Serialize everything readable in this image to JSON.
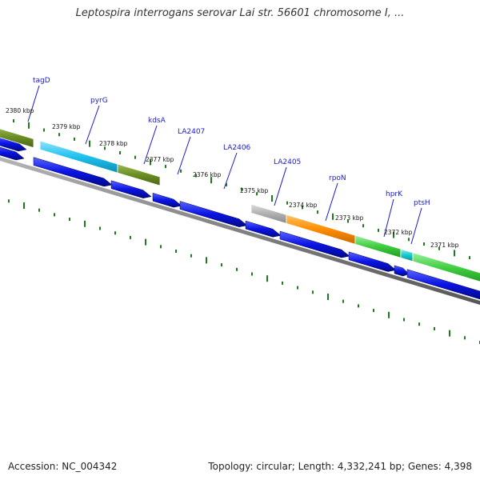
{
  "title": "Leptospira interrogans serovar Lai str. 56601 chromosome I, ...",
  "footer": {
    "accession": "Accession: NC_004342",
    "summary": "Topology: circular; Length: 4,332,241 bp; Genes: 4,398"
  },
  "colors": {
    "cds_blue": "#0a14e6",
    "backbone": "#808080",
    "tick_green": "#1e7a1e",
    "label_blue": "#1a1acc",
    "cog_olive": "#6b8e23",
    "cog_cyan": "#1fc0ee",
    "cog_gray": "#b0b0b0",
    "cog_orange": "#ff8c00",
    "cog_green": "#3fcc3f",
    "cog_teal": "#19c6cc"
  },
  "kbp_labels": [
    "2380 kbp",
    "2379 kbp",
    "2378 kbp",
    "2377 kbp",
    "2376 kbp",
    "2375 kbp",
    "2374 kbp",
    "2373 kbp",
    "2372 kbp",
    "2371 kbp"
  ],
  "gene_labels": [
    "tagD",
    "pyrG",
    "kdsA",
    "LA2407",
    "LA2406",
    "LA2405",
    "rpoN",
    "hprK",
    "ptsH"
  ],
  "cog_blocks": [
    {
      "gene": "tagD",
      "color": "olive"
    },
    {
      "gene": "pyrG",
      "color": "cyan"
    },
    {
      "gene": "kdsA",
      "color": "olive"
    },
    {
      "gene": "LA2405",
      "color": "gray"
    },
    {
      "gene": "rpoN",
      "color": "orange"
    },
    {
      "gene": "hprK",
      "color": "green"
    },
    {
      "gene": "ptsH",
      "color": "teal"
    },
    {
      "gene": "",
      "color": "green"
    }
  ]
}
